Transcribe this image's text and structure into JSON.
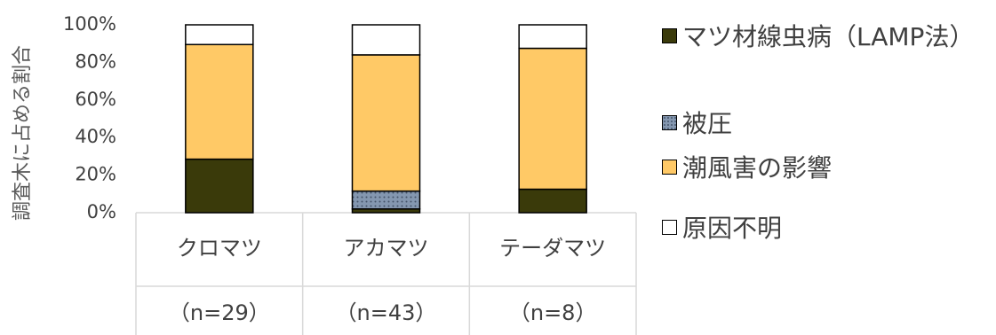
{
  "chart_data": {
    "type": "bar",
    "stacked": true,
    "ylabel": "調査木に占める割合",
    "ylim": [
      0,
      100
    ],
    "yticks": [
      "0%",
      "20%",
      "40%",
      "60%",
      "80%",
      "100%"
    ],
    "categories": [
      {
        "name": "クロマツ",
        "n": "（n=29）"
      },
      {
        "name": "アカマツ",
        "n": "（n=43）"
      },
      {
        "name": "テーダマツ",
        "n": "（n=8）"
      }
    ],
    "series": [
      {
        "name": "マツ材線虫病（LAMP法）",
        "color": "#3a3a0a",
        "pattern": "solid",
        "values": [
          28.5,
          2,
          12.5
        ]
      },
      {
        "name": "被圧",
        "color": "#8497b0",
        "pattern": "dots",
        "values": [
          0,
          9.5,
          0
        ]
      },
      {
        "name": "潮風害の影響",
        "color": "#ffc966",
        "pattern": "solid",
        "values": [
          61,
          72.5,
          75
        ]
      },
      {
        "name": "原因不明",
        "color": "#ffffff",
        "pattern": "solid",
        "values": [
          10.5,
          16,
          12.5
        ]
      }
    ],
    "grid": false,
    "legend_position": "right"
  }
}
